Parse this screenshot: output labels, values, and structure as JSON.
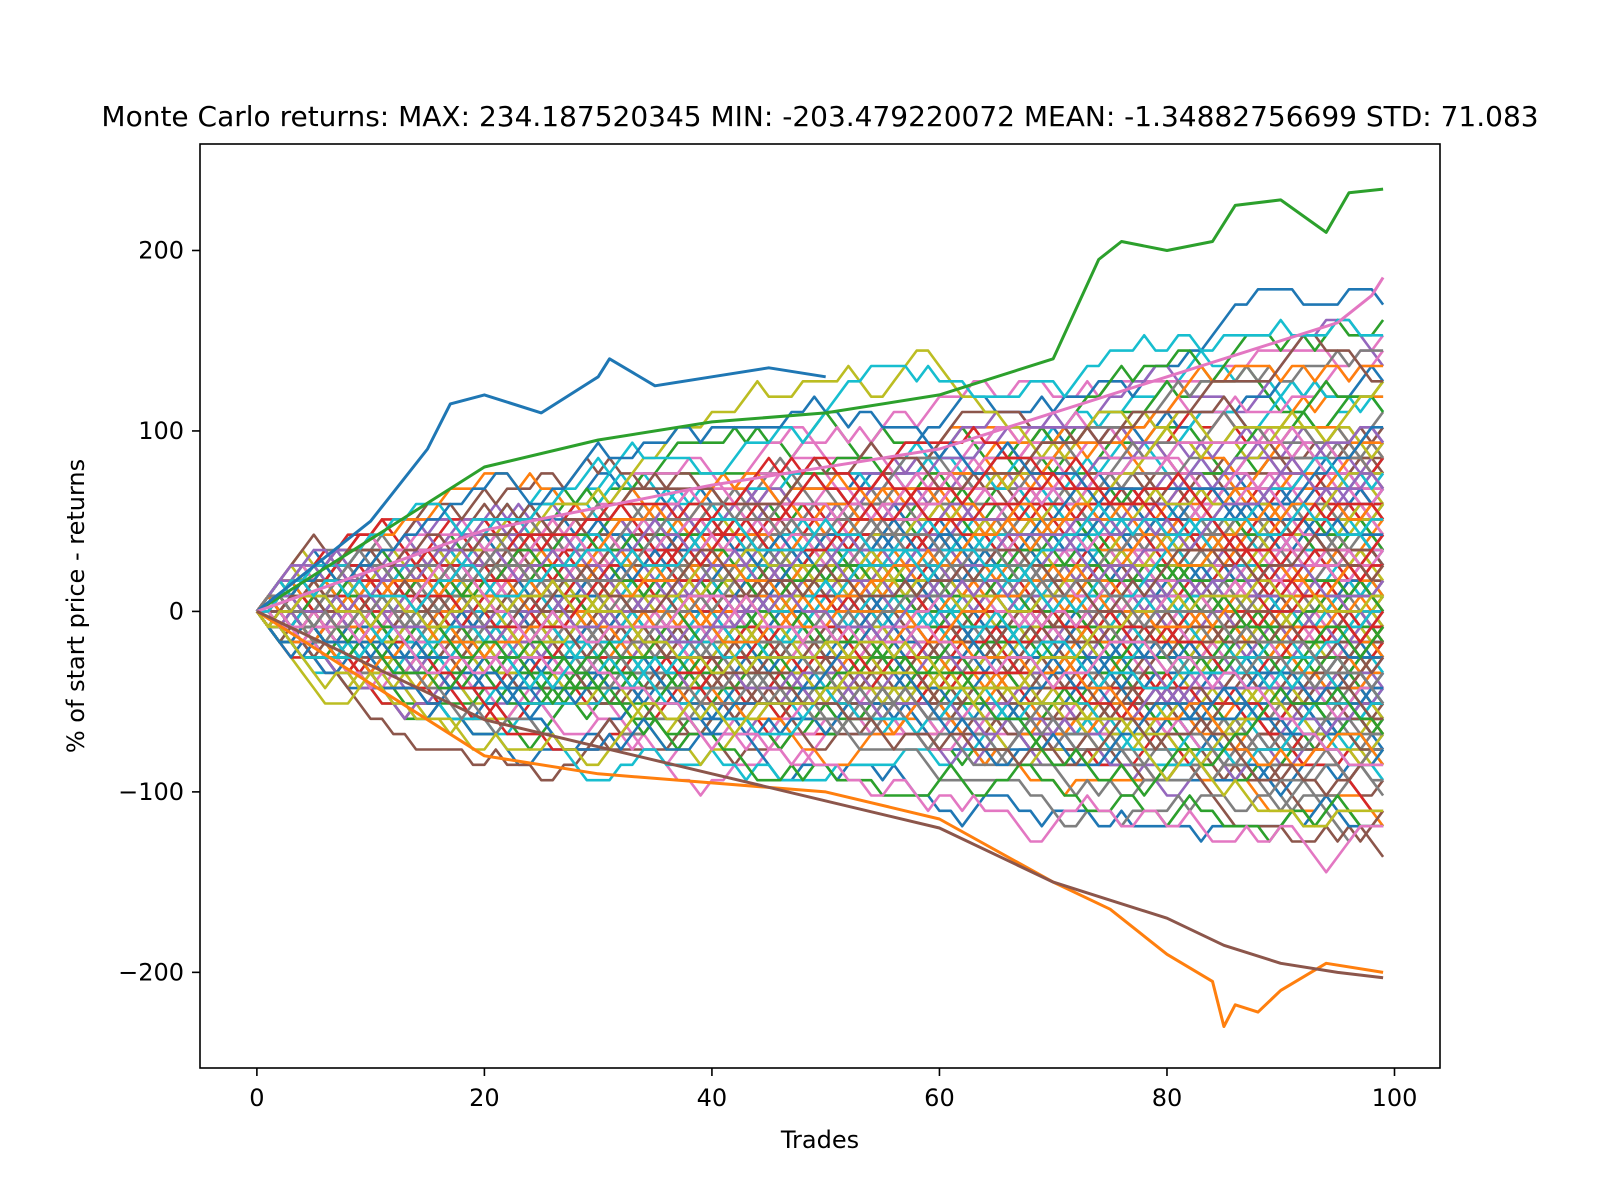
{
  "chart_data": {
    "type": "line",
    "title": "Monte Carlo returns: MAX: 234.187520345 MIN: -203.479220072 MEAN: -1.34882756699 STD: 71.083",
    "xlabel": "Trades",
    "ylabel": "% of start price - returns",
    "xlim": [
      -5,
      104
    ],
    "ylim": [
      -253,
      259
    ],
    "xticks": [
      0,
      20,
      40,
      60,
      80,
      100
    ],
    "yticks": [
      -200,
      -100,
      0,
      100,
      200
    ],
    "ytick_labels": [
      "−200",
      "−100",
      "0",
      "100",
      "200"
    ],
    "grid": false,
    "legend": "none",
    "stats": {
      "max": 234.187520345,
      "min": -203.479220072,
      "mean": -1.34882756699,
      "std": 71.083
    },
    "simulation": {
      "paths": 300,
      "trades": 100,
      "steps": [
        -8.5,
        8.5
      ]
    },
    "highlighted_series": [
      {
        "name": "",
        "color": "#2ca02c",
        "x": [
          0,
          10,
          20,
          30,
          40,
          50,
          60,
          70,
          74,
          76,
          80,
          84,
          86,
          90,
          94,
          96,
          99
        ],
        "y": [
          0,
          40,
          80,
          95,
          105,
          110,
          120,
          140,
          195,
          205,
          200,
          205,
          225,
          228,
          210,
          232,
          234
        ]
      },
      {
        "name": "",
        "color": "#ff7f0e",
        "x": [
          0,
          10,
          20,
          30,
          40,
          50,
          60,
          70,
          75,
          80,
          84,
          85,
          86,
          88,
          90,
          94,
          99
        ],
        "y": [
          0,
          -40,
          -80,
          -90,
          -95,
          -100,
          -115,
          -150,
          -165,
          -190,
          -205,
          -230,
          -218,
          -222,
          -210,
          -195,
          -200
        ]
      },
      {
        "name": "",
        "color": "#1f77b4",
        "x": [
          0,
          10,
          15,
          17,
          20,
          25,
          30,
          31,
          35,
          40,
          45,
          50
        ],
        "y": [
          0,
          50,
          90,
          115,
          120,
          110,
          130,
          140,
          125,
          130,
          135,
          130
        ]
      },
      {
        "name": "",
        "color": "#e377c2",
        "x": [
          0,
          20,
          40,
          60,
          80,
          95,
          98,
          99
        ],
        "y": [
          0,
          45,
          70,
          90,
          130,
          160,
          175,
          185
        ]
      },
      {
        "name": "",
        "color": "#8c564b",
        "x": [
          0,
          20,
          40,
          60,
          70,
          80,
          85,
          90,
          95,
          99
        ],
        "y": [
          0,
          -60,
          -90,
          -120,
          -150,
          -170,
          -185,
          -195,
          -200,
          -203
        ]
      }
    ],
    "palette": [
      "#1f77b4",
      "#ff7f0e",
      "#2ca02c",
      "#d62728",
      "#9467bd",
      "#8c564b",
      "#e377c2",
      "#7f7f7f",
      "#bcbd22",
      "#17becf"
    ]
  }
}
